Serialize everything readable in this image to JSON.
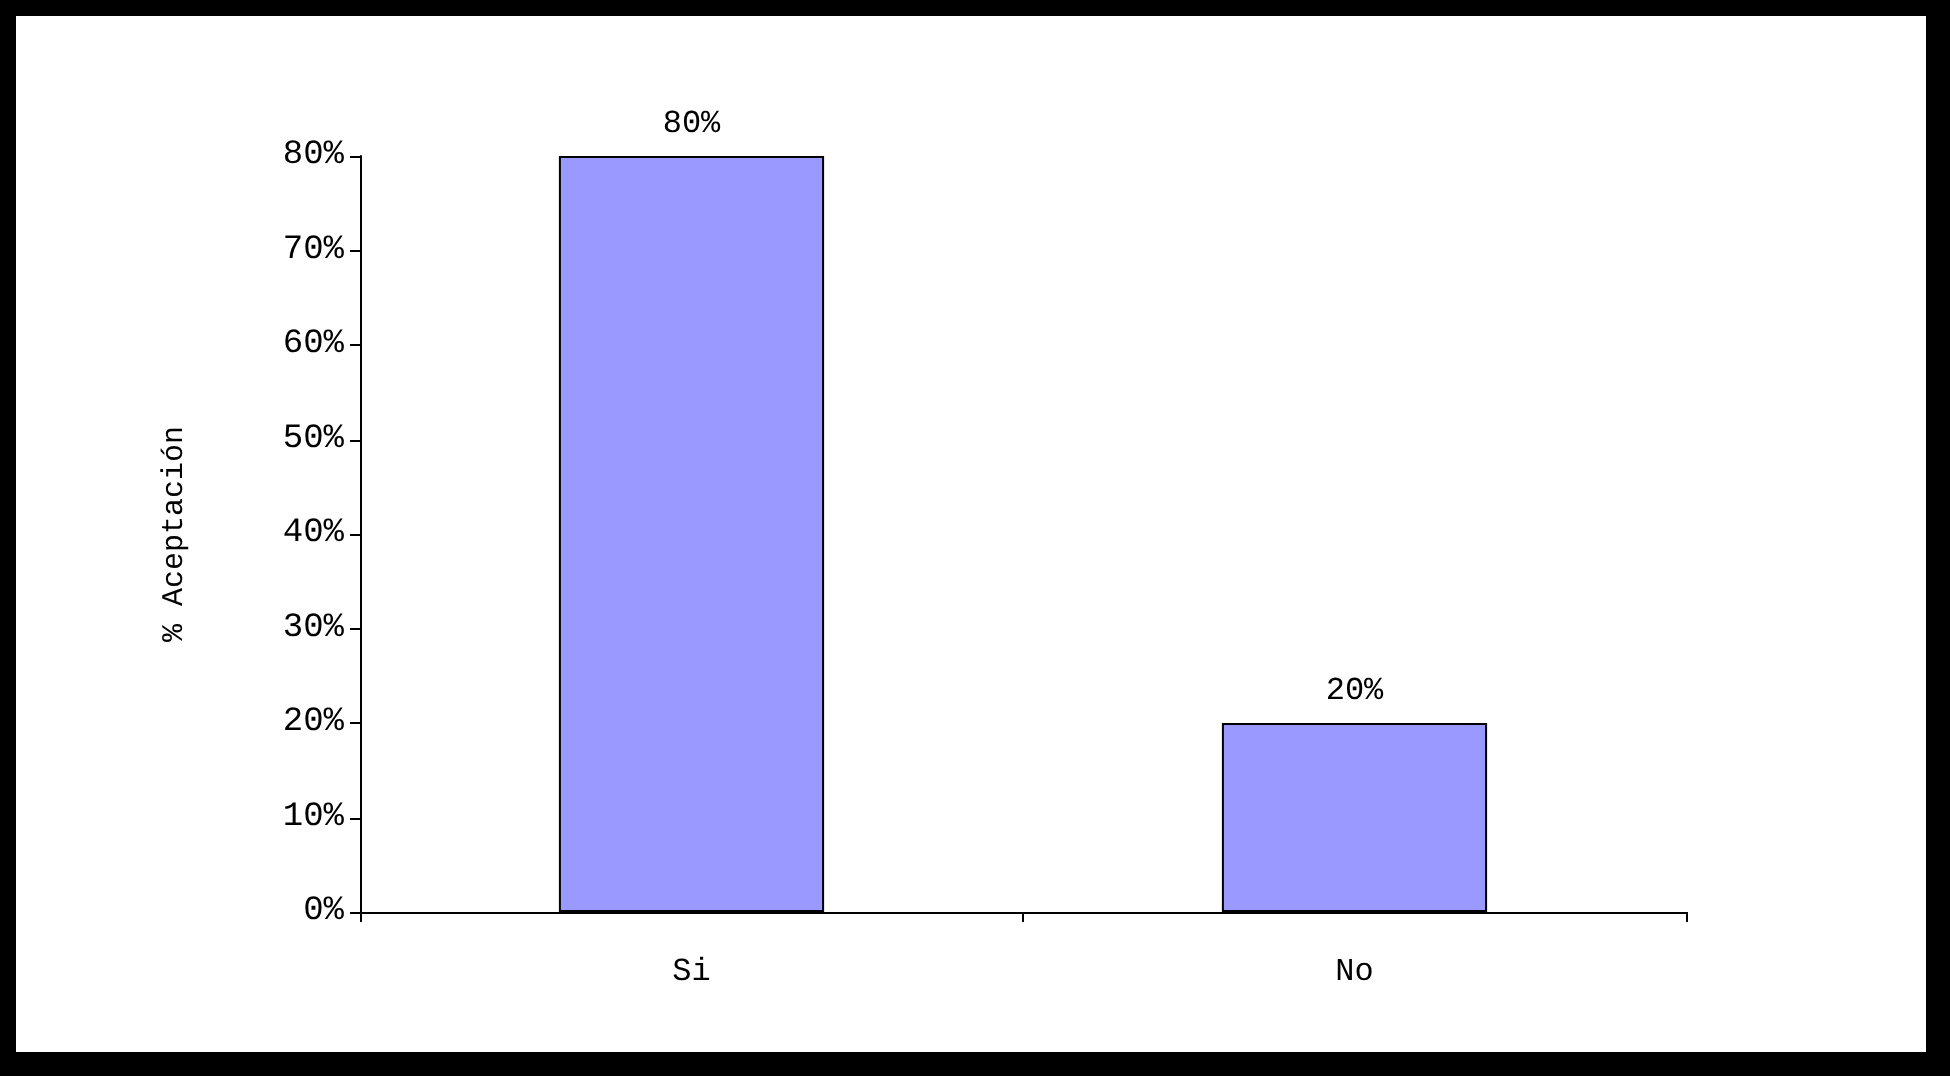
{
  "chart_data": {
    "type": "bar",
    "ylabel": "% Aceptación",
    "categories": [
      "Si",
      "No"
    ],
    "values": [
      80,
      20
    ],
    "color": "#9999ff",
    "value_labels": [
      "80%",
      "20%"
    ],
    "ylim": [
      0,
      80
    ],
    "yticks": [
      {
        "value": 0,
        "label": "0%"
      },
      {
        "value": 10,
        "label": "10%"
      },
      {
        "value": 20,
        "label": "20%"
      },
      {
        "value": 30,
        "label": "30%"
      },
      {
        "value": 40,
        "label": "40%"
      },
      {
        "value": 50,
        "label": "50%"
      },
      {
        "value": 60,
        "label": "60%"
      },
      {
        "value": 70,
        "label": "70%"
      },
      {
        "value": 80,
        "label": "80%"
      }
    ],
    "grid": false
  }
}
